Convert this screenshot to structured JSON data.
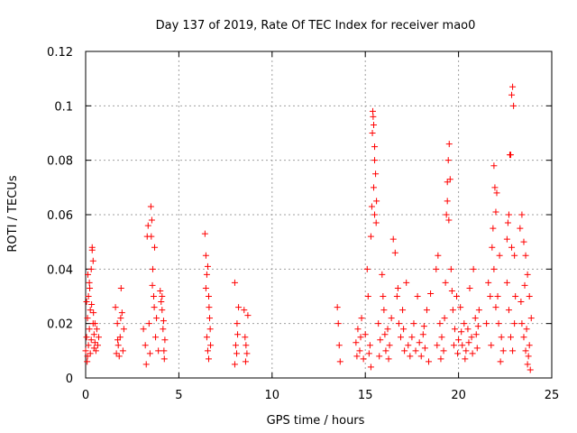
{
  "chart_data": {
    "type": "scatter",
    "title": "Day 137 of 2019, Rate Of TEC Index for receiver mao0",
    "xlabel": "GPS time / hours",
    "ylabel": "ROTI / TECUs",
    "xlim": [
      0,
      25
    ],
    "ylim": [
      0,
      0.12
    ],
    "xticks": [
      0,
      5,
      10,
      15,
      20,
      25
    ],
    "yticks": [
      0,
      0.02,
      0.04,
      0.06,
      0.08,
      0.1,
      0.12
    ],
    "xtick_labels": [
      "0",
      "5",
      "10",
      "15",
      "20",
      "25"
    ],
    "ytick_labels": [
      "0",
      "0.02",
      "0.04",
      "0.06",
      "0.08",
      "0.1",
      "0.12"
    ],
    "grid": true,
    "marker": "+",
    "marker_color": "#ff0000",
    "series": [
      {
        "name": "ROTI",
        "points": [
          [
            0.0,
            0.01
          ],
          [
            0.05,
            0.015
          ],
          [
            0.1,
            0.008
          ],
          [
            0.1,
            0.022
          ],
          [
            0.15,
            0.03
          ],
          [
            0.15,
            0.012
          ],
          [
            0.2,
            0.018
          ],
          [
            0.2,
            0.035
          ],
          [
            0.25,
            0.025
          ],
          [
            0.25,
            0.009
          ],
          [
            0.3,
            0.04
          ],
          [
            0.3,
            0.014
          ],
          [
            0.35,
            0.048
          ],
          [
            0.35,
            0.047
          ],
          [
            0.4,
            0.043
          ],
          [
            0.4,
            0.02
          ],
          [
            0.45,
            0.016
          ],
          [
            0.45,
            0.011
          ],
          [
            0.5,
            0.013
          ],
          [
            0.55,
            0.01
          ],
          [
            0.6,
            0.018
          ],
          [
            0.65,
            0.012
          ],
          [
            0.7,
            0.015
          ],
          [
            0.05,
            0.028
          ],
          [
            0.12,
            0.038
          ],
          [
            0.22,
            0.033
          ],
          [
            0.32,
            0.027
          ],
          [
            0.42,
            0.024
          ],
          [
            0.5,
            0.02
          ],
          [
            0.08,
            0.006
          ],
          [
            1.6,
            0.026
          ],
          [
            1.7,
            0.02
          ],
          [
            1.75,
            0.012
          ],
          [
            1.8,
            0.008
          ],
          [
            1.85,
            0.015
          ],
          [
            1.9,
            0.033
          ],
          [
            1.95,
            0.024
          ],
          [
            2.0,
            0.01
          ],
          [
            2.05,
            0.018
          ],
          [
            1.65,
            0.009
          ],
          [
            1.72,
            0.014
          ],
          [
            1.88,
            0.022
          ],
          [
            3.1,
            0.018
          ],
          [
            3.2,
            0.012
          ],
          [
            3.3,
            0.052
          ],
          [
            3.35,
            0.056
          ],
          [
            3.4,
            0.02
          ],
          [
            3.45,
            0.009
          ],
          [
            3.5,
            0.063
          ],
          [
            3.55,
            0.058
          ],
          [
            3.6,
            0.04
          ],
          [
            3.65,
            0.03
          ],
          [
            3.7,
            0.048
          ],
          [
            3.75,
            0.015
          ],
          [
            3.8,
            0.022
          ],
          [
            3.9,
            0.01
          ],
          [
            3.25,
            0.005
          ],
          [
            3.52,
            0.052
          ],
          [
            3.58,
            0.034
          ],
          [
            3.68,
            0.026
          ],
          [
            4.0,
            0.032
          ],
          [
            4.05,
            0.028
          ],
          [
            4.1,
            0.025
          ],
          [
            4.15,
            0.018
          ],
          [
            4.2,
            0.01
          ],
          [
            4.25,
            0.014
          ],
          [
            4.1,
            0.03
          ],
          [
            4.18,
            0.021
          ],
          [
            4.22,
            0.007
          ],
          [
            6.4,
            0.053
          ],
          [
            6.45,
            0.045
          ],
          [
            6.5,
            0.038
          ],
          [
            6.55,
            0.041
          ],
          [
            6.6,
            0.03
          ],
          [
            6.65,
            0.022
          ],
          [
            6.5,
            0.015
          ],
          [
            6.55,
            0.01
          ],
          [
            6.6,
            0.007
          ],
          [
            6.7,
            0.012
          ],
          [
            6.45,
            0.033
          ],
          [
            6.62,
            0.026
          ],
          [
            6.68,
            0.018
          ],
          [
            8.0,
            0.035
          ],
          [
            8.05,
            0.012
          ],
          [
            8.1,
            0.009
          ],
          [
            8.15,
            0.016
          ],
          [
            8.2,
            0.026
          ],
          [
            8.0,
            0.005
          ],
          [
            8.12,
            0.02
          ],
          [
            8.5,
            0.025
          ],
          [
            8.55,
            0.015
          ],
          [
            8.6,
            0.012
          ],
          [
            8.65,
            0.009
          ],
          [
            8.7,
            0.023
          ],
          [
            8.58,
            0.006
          ],
          [
            13.5,
            0.026
          ],
          [
            13.55,
            0.02
          ],
          [
            13.6,
            0.012
          ],
          [
            13.65,
            0.006
          ],
          [
            14.5,
            0.013
          ],
          [
            14.6,
            0.018
          ],
          [
            14.7,
            0.01
          ],
          [
            14.8,
            0.022
          ],
          [
            14.9,
            0.007
          ],
          [
            15.0,
            0.016
          ],
          [
            15.1,
            0.04
          ],
          [
            15.15,
            0.03
          ],
          [
            15.2,
            0.009
          ],
          [
            15.25,
            0.012
          ],
          [
            15.3,
            0.004
          ],
          [
            14.55,
            0.008
          ],
          [
            14.75,
            0.015
          ],
          [
            15.3,
            0.052
          ],
          [
            15.35,
            0.063
          ],
          [
            15.4,
            0.098
          ],
          [
            15.45,
            0.093
          ],
          [
            15.5,
            0.085
          ],
          [
            15.55,
            0.075
          ],
          [
            15.6,
            0.065
          ],
          [
            15.5,
            0.06
          ],
          [
            15.45,
            0.07
          ],
          [
            15.42,
            0.096
          ],
          [
            15.38,
            0.09
          ],
          [
            15.5,
            0.08
          ],
          [
            15.58,
            0.057
          ],
          [
            15.7,
            0.02
          ],
          [
            15.8,
            0.014
          ],
          [
            15.9,
            0.038
          ],
          [
            16.0,
            0.025
          ],
          [
            16.1,
            0.01
          ],
          [
            16.2,
            0.018
          ],
          [
            16.3,
            0.012
          ],
          [
            16.4,
            0.022
          ],
          [
            15.75,
            0.008
          ],
          [
            15.95,
            0.03
          ],
          [
            16.05,
            0.016
          ],
          [
            16.25,
            0.007
          ],
          [
            16.5,
            0.051
          ],
          [
            16.6,
            0.046
          ],
          [
            16.7,
            0.03
          ],
          [
            16.8,
            0.02
          ],
          [
            16.9,
            0.015
          ],
          [
            17.0,
            0.025
          ],
          [
            17.1,
            0.01
          ],
          [
            17.2,
            0.035
          ],
          [
            17.3,
            0.012
          ],
          [
            17.4,
            0.008
          ],
          [
            16.75,
            0.033
          ],
          [
            17.05,
            0.018
          ],
          [
            17.5,
            0.015
          ],
          [
            17.6,
            0.02
          ],
          [
            17.7,
            0.01
          ],
          [
            17.8,
            0.03
          ],
          [
            17.9,
            0.013
          ],
          [
            18.0,
            0.008
          ],
          [
            18.1,
            0.016
          ],
          [
            18.2,
            0.011
          ],
          [
            18.3,
            0.025
          ],
          [
            18.4,
            0.006
          ],
          [
            18.5,
            0.031
          ],
          [
            18.15,
            0.019
          ],
          [
            18.8,
            0.04
          ],
          [
            18.9,
            0.045
          ],
          [
            19.0,
            0.02
          ],
          [
            19.1,
            0.015
          ],
          [
            19.2,
            0.01
          ],
          [
            19.3,
            0.035
          ],
          [
            19.35,
            0.06
          ],
          [
            19.4,
            0.065
          ],
          [
            19.45,
            0.08
          ],
          [
            19.5,
            0.086
          ],
          [
            19.55,
            0.073
          ],
          [
            19.4,
            0.072
          ],
          [
            19.6,
            0.04
          ],
          [
            19.7,
            0.025
          ],
          [
            19.8,
            0.018
          ],
          [
            19.9,
            0.03
          ],
          [
            18.85,
            0.012
          ],
          [
            19.05,
            0.007
          ],
          [
            19.25,
            0.022
          ],
          [
            19.48,
            0.058
          ],
          [
            19.65,
            0.032
          ],
          [
            19.75,
            0.012
          ],
          [
            19.95,
            0.009
          ],
          [
            20.0,
            0.014
          ],
          [
            20.1,
            0.026
          ],
          [
            20.2,
            0.012
          ],
          [
            20.3,
            0.02
          ],
          [
            20.4,
            0.01
          ],
          [
            20.5,
            0.018
          ],
          [
            20.6,
            0.033
          ],
          [
            20.7,
            0.015
          ],
          [
            20.8,
            0.04
          ],
          [
            20.9,
            0.022
          ],
          [
            21.0,
            0.011
          ],
          [
            21.1,
            0.025
          ],
          [
            20.15,
            0.017
          ],
          [
            20.35,
            0.007
          ],
          [
            20.55,
            0.013
          ],
          [
            20.75,
            0.009
          ],
          [
            20.95,
            0.016
          ],
          [
            21.05,
            0.019
          ],
          [
            21.5,
            0.02
          ],
          [
            21.6,
            0.035
          ],
          [
            21.7,
            0.03
          ],
          [
            21.8,
            0.048
          ],
          [
            21.85,
            0.055
          ],
          [
            21.9,
            0.078
          ],
          [
            21.95,
            0.07
          ],
          [
            22.0,
            0.061
          ],
          [
            22.05,
            0.068
          ],
          [
            22.1,
            0.03
          ],
          [
            22.15,
            0.02
          ],
          [
            22.2,
            0.045
          ],
          [
            22.3,
            0.015
          ],
          [
            22.4,
            0.01
          ],
          [
            21.75,
            0.012
          ],
          [
            21.9,
            0.04
          ],
          [
            22.0,
            0.026
          ],
          [
            22.25,
            0.006
          ],
          [
            22.6,
            0.051
          ],
          [
            22.65,
            0.057
          ],
          [
            22.7,
            0.06
          ],
          [
            22.75,
            0.082
          ],
          [
            22.8,
            0.082
          ],
          [
            22.85,
            0.104
          ],
          [
            22.9,
            0.107
          ],
          [
            22.95,
            0.1
          ],
          [
            23.0,
            0.045
          ],
          [
            23.05,
            0.03
          ],
          [
            22.7,
            0.025
          ],
          [
            22.8,
            0.015
          ],
          [
            22.9,
            0.01
          ],
          [
            23.0,
            0.02
          ],
          [
            22.6,
            0.035
          ],
          [
            22.85,
            0.048
          ],
          [
            23.3,
            0.055
          ],
          [
            23.4,
            0.06
          ],
          [
            23.5,
            0.05
          ],
          [
            23.6,
            0.045
          ],
          [
            23.7,
            0.038
          ],
          [
            23.8,
            0.03
          ],
          [
            23.4,
            0.02
          ],
          [
            23.5,
            0.015
          ],
          [
            23.6,
            0.01
          ],
          [
            23.7,
            0.005
          ],
          [
            23.8,
            0.012
          ],
          [
            23.9,
            0.022
          ],
          [
            23.35,
            0.028
          ],
          [
            23.55,
            0.034
          ],
          [
            23.65,
            0.018
          ],
          [
            23.75,
            0.008
          ],
          [
            23.85,
            0.003
          ]
        ]
      }
    ]
  }
}
